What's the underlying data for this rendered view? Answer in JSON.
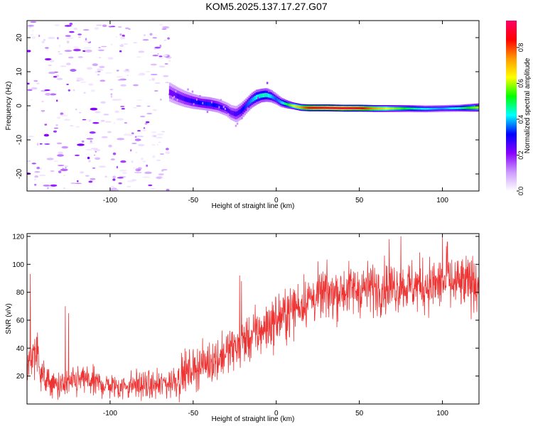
{
  "page_title": "KOM5.2025.137.17.27.G07",
  "chart_data": [
    {
      "type": "heatmap",
      "title": "KOM5.2025.137.17.27.G07",
      "xlabel": "Height of straight line (km)",
      "ylabel": "Frequency (Hz)",
      "xlim": [
        -150,
        122
      ],
      "ylim": [
        -25,
        25
      ],
      "x_ticks": [
        -100,
        -50,
        0,
        50,
        100
      ],
      "x_tick_labels": [
        "-100",
        "-50",
        "0",
        "50",
        "100"
      ],
      "y_ticks": [
        -20,
        -10,
        0,
        10,
        20
      ],
      "y_tick_labels": [
        "-20",
        "-10",
        "0",
        "10",
        "20"
      ],
      "colorbar": {
        "label": "Normalized spectral amplitude",
        "range": [
          0,
          0.95
        ],
        "ticks": [
          0.0,
          0.2,
          0.4,
          0.6,
          0.8
        ],
        "tick_labels": [
          "0.0",
          "0.2",
          "0.4",
          "0.6",
          "0.8"
        ],
        "colors": [
          "#ffffff",
          "#cc99ff",
          "#8800ff",
          "#0000ff",
          "#00ffff",
          "#00ff00",
          "#ffff00",
          "#ff9900",
          "#ff0000",
          "#ff0066"
        ]
      },
      "ridge": {
        "x": [
          -64,
          -60,
          -55,
          -50,
          -45,
          -40,
          -35,
          -30,
          -27,
          -24,
          -21,
          -18,
          -15,
          -12,
          -9,
          -6,
          -3,
          0,
          3,
          6,
          10,
          15,
          20,
          30,
          40,
          50,
          60,
          70,
          80,
          90,
          100,
          110,
          122
        ],
        "frequency": [
          4.0,
          3.0,
          2.0,
          1.3,
          0.8,
          0.5,
          0.0,
          -1.0,
          -2.0,
          -2.5,
          -1.5,
          0.0,
          1.5,
          2.5,
          3.0,
          3.2,
          2.8,
          2.0,
          1.0,
          0.5,
          0.0,
          -0.5,
          -0.6,
          -0.6,
          -0.7,
          -0.7,
          -0.8,
          -0.8,
          -0.8,
          -0.9,
          -0.8,
          -0.7,
          -0.5
        ],
        "amplitude": [
          0.22,
          0.25,
          0.27,
          0.3,
          0.32,
          0.33,
          0.3,
          0.27,
          0.25,
          0.26,
          0.3,
          0.34,
          0.38,
          0.42,
          0.45,
          0.45,
          0.4,
          0.35,
          0.4,
          0.5,
          0.62,
          0.74,
          0.85,
          0.9,
          0.92,
          0.88,
          0.72,
          0.6,
          0.5,
          0.42,
          0.38,
          0.45,
          0.6
        ],
        "width_hz": [
          2.8,
          2.6,
          2.4,
          2.2,
          2.0,
          2.0,
          2.0,
          2.0,
          2.2,
          2.4,
          2.4,
          2.2,
          2.2,
          2.2,
          2.0,
          2.0,
          1.8,
          1.6,
          1.4,
          1.2,
          1.0,
          1.0,
          1.0,
          1.0,
          1.0,
          1.0,
          1.0,
          1.0,
          1.0,
          1.0,
          1.0,
          1.0,
          1.2
        ]
      },
      "noise_region": {
        "x_range": [
          -150,
          -64
        ],
        "frequency_range": [
          -25,
          25
        ],
        "amplitude_range": [
          0.02,
          0.22
        ]
      }
    },
    {
      "type": "line",
      "title": "",
      "xlabel": "Height of straight line (km)",
      "ylabel": "SNR (v/v)",
      "xlim": [
        -150,
        122
      ],
      "ylim": [
        0,
        122
      ],
      "x_ticks": [
        -100,
        -50,
        0,
        50,
        100
      ],
      "x_tick_labels": [
        "-100",
        "-50",
        "0",
        "50",
        "100"
      ],
      "y_ticks": [
        20,
        40,
        60,
        80,
        100,
        120
      ],
      "y_tick_labels": [
        "20",
        "40",
        "60",
        "80",
        "100",
        "120"
      ],
      "line_color": "#ee3333",
      "series": [
        {
          "x": [
            -150,
            -145,
            -140,
            -135,
            -130,
            -125,
            -120,
            -115,
            -110,
            -105,
            -100,
            -95,
            -90,
            -85,
            -80,
            -75,
            -70,
            -65,
            -60,
            -55,
            -50,
            -45,
            -40,
            -35,
            -30,
            -25,
            -20,
            -15,
            -10,
            -5,
            0,
            5,
            10,
            15,
            20,
            25,
            30,
            35,
            40,
            45,
            50,
            55,
            60,
            65,
            70,
            75,
            80,
            85,
            90,
            95,
            100,
            105,
            110,
            115,
            120
          ],
          "y": [
            25,
            40,
            18,
            14,
            13,
            14,
            16,
            18,
            15,
            14,
            13,
            12,
            13,
            14,
            13,
            13,
            14,
            15,
            18,
            22,
            25,
            28,
            30,
            33,
            37,
            40,
            45,
            48,
            52,
            56,
            60,
            64,
            68,
            72,
            75,
            77,
            79,
            80,
            81,
            82,
            82,
            83,
            83,
            84,
            84,
            84,
            84,
            85,
            85,
            85,
            86,
            86,
            86,
            86,
            87
          ],
          "noise": [
            6,
            15,
            8,
            7,
            7,
            7,
            8,
            8,
            7,
            7,
            7,
            7,
            7,
            7,
            7,
            7,
            7,
            8,
            10,
            10,
            10,
            10,
            11,
            11,
            11,
            12,
            12,
            12,
            13,
            13,
            13,
            13,
            13,
            13,
            13,
            13,
            13,
            13,
            13,
            13,
            13,
            13,
            13,
            13,
            13,
            13,
            13,
            14,
            14,
            14,
            14,
            14,
            14,
            14,
            14
          ],
          "spikes": [
            {
              "x": -148,
              "y": 93
            },
            {
              "x": -127,
              "y": 70
            },
            {
              "x": -125,
              "y": 65
            },
            {
              "x": -22,
              "y": 92
            },
            {
              "x": -21,
              "y": 88
            },
            {
              "x": 68,
              "y": 118
            },
            {
              "x": 75,
              "y": 120
            },
            {
              "x": 100,
              "y": 120
            },
            {
              "x": 103,
              "y": 116
            }
          ]
        }
      ]
    }
  ]
}
